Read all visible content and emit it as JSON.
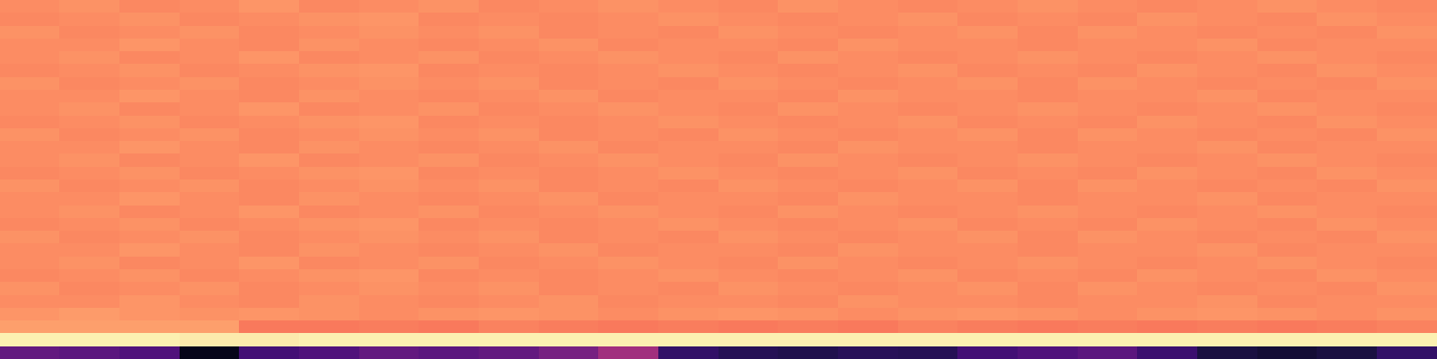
{
  "chart_data": {
    "type": "heatmap",
    "color": "magma",
    "tick_labels": false,
    "color_range": [
      0,
      1
    ],
    "cells": [
      [
        0.76,
        0.77,
        0.75,
        0.76,
        0.78,
        0.75,
        0.76,
        0.77,
        0.75,
        0.76,
        0.77,
        0.76,
        0.75,
        0.77,
        0.76,
        0.75,
        0.76,
        0.77,
        0.76,
        0.75,
        0.76,
        0.77,
        0.76,
        0.75
      ],
      [
        0.75,
        0.76,
        0.77,
        0.75,
        0.76,
        0.77,
        0.78,
        0.75,
        0.76,
        0.75,
        0.76,
        0.77,
        0.76,
        0.75,
        0.76,
        0.77,
        0.75,
        0.76,
        0.75,
        0.77,
        0.76,
        0.75,
        0.77,
        0.76
      ],
      [
        0.77,
        0.75,
        0.76,
        0.77,
        0.75,
        0.76,
        0.77,
        0.76,
        0.77,
        0.75,
        0.76,
        0.75,
        0.77,
        0.76,
        0.75,
        0.76,
        0.77,
        0.75,
        0.77,
        0.76,
        0.75,
        0.76,
        0.75,
        0.77
      ],
      [
        0.76,
        0.76,
        0.78,
        0.76,
        0.75,
        0.77,
        0.76,
        0.75,
        0.76,
        0.77,
        0.75,
        0.76,
        0.76,
        0.75,
        0.77,
        0.76,
        0.76,
        0.75,
        0.76,
        0.76,
        0.77,
        0.75,
        0.76,
        0.76
      ],
      [
        0.76,
        0.77,
        0.75,
        0.76,
        0.78,
        0.75,
        0.76,
        0.77,
        0.75,
        0.76,
        0.77,
        0.76,
        0.75,
        0.77,
        0.76,
        0.75,
        0.76,
        0.77,
        0.76,
        0.75,
        0.76,
        0.77,
        0.76,
        0.75
      ],
      [
        0.75,
        0.76,
        0.77,
        0.75,
        0.76,
        0.77,
        0.78,
        0.75,
        0.76,
        0.75,
        0.76,
        0.77,
        0.76,
        0.75,
        0.76,
        0.77,
        0.75,
        0.76,
        0.75,
        0.77,
        0.76,
        0.75,
        0.77,
        0.76
      ],
      [
        0.77,
        0.75,
        0.76,
        0.77,
        0.75,
        0.76,
        0.77,
        0.76,
        0.77,
        0.75,
        0.76,
        0.75,
        0.77,
        0.76,
        0.75,
        0.76,
        0.77,
        0.75,
        0.77,
        0.76,
        0.75,
        0.76,
        0.75,
        0.77
      ],
      [
        0.76,
        0.76,
        0.78,
        0.76,
        0.75,
        0.77,
        0.76,
        0.75,
        0.76,
        0.77,
        0.75,
        0.76,
        0.76,
        0.75,
        0.77,
        0.76,
        0.76,
        0.75,
        0.76,
        0.76,
        0.77,
        0.75,
        0.76,
        0.76
      ],
      [
        0.76,
        0.77,
        0.75,
        0.76,
        0.78,
        0.75,
        0.76,
        0.77,
        0.75,
        0.76,
        0.77,
        0.76,
        0.75,
        0.77,
        0.76,
        0.75,
        0.76,
        0.77,
        0.76,
        0.75,
        0.76,
        0.77,
        0.76,
        0.75
      ],
      [
        0.75,
        0.76,
        0.77,
        0.75,
        0.76,
        0.77,
        0.78,
        0.75,
        0.76,
        0.75,
        0.76,
        0.77,
        0.76,
        0.75,
        0.76,
        0.77,
        0.75,
        0.76,
        0.75,
        0.77,
        0.76,
        0.75,
        0.77,
        0.76
      ],
      [
        0.77,
        0.75,
        0.76,
        0.77,
        0.75,
        0.76,
        0.77,
        0.76,
        0.77,
        0.75,
        0.76,
        0.75,
        0.77,
        0.76,
        0.75,
        0.76,
        0.77,
        0.75,
        0.77,
        0.76,
        0.75,
        0.76,
        0.75,
        0.77
      ],
      [
        0.76,
        0.76,
        0.78,
        0.76,
        0.75,
        0.77,
        0.76,
        0.75,
        0.76,
        0.77,
        0.75,
        0.76,
        0.76,
        0.75,
        0.77,
        0.76,
        0.76,
        0.75,
        0.76,
        0.76,
        0.77,
        0.75,
        0.76,
        0.76
      ],
      [
        0.76,
        0.77,
        0.75,
        0.76,
        0.78,
        0.75,
        0.76,
        0.77,
        0.75,
        0.76,
        0.77,
        0.76,
        0.75,
        0.77,
        0.76,
        0.75,
        0.76,
        0.77,
        0.76,
        0.75,
        0.76,
        0.77,
        0.76,
        0.75
      ],
      [
        0.75,
        0.76,
        0.77,
        0.75,
        0.76,
        0.77,
        0.78,
        0.75,
        0.76,
        0.75,
        0.76,
        0.77,
        0.76,
        0.75,
        0.76,
        0.77,
        0.75,
        0.76,
        0.75,
        0.77,
        0.76,
        0.75,
        0.77,
        0.76
      ],
      [
        0.77,
        0.75,
        0.76,
        0.77,
        0.75,
        0.76,
        0.77,
        0.76,
        0.77,
        0.75,
        0.76,
        0.75,
        0.77,
        0.76,
        0.75,
        0.76,
        0.77,
        0.75,
        0.77,
        0.76,
        0.75,
        0.76,
        0.75,
        0.77
      ],
      [
        0.76,
        0.76,
        0.78,
        0.76,
        0.75,
        0.77,
        0.76,
        0.75,
        0.76,
        0.77,
        0.75,
        0.76,
        0.76,
        0.75,
        0.77,
        0.76,
        0.76,
        0.75,
        0.76,
        0.76,
        0.77,
        0.75,
        0.76,
        0.76
      ],
      [
        0.76,
        0.77,
        0.75,
        0.76,
        0.78,
        0.75,
        0.76,
        0.77,
        0.75,
        0.76,
        0.77,
        0.76,
        0.75,
        0.77,
        0.76,
        0.75,
        0.76,
        0.77,
        0.76,
        0.75,
        0.76,
        0.77,
        0.76,
        0.75
      ],
      [
        0.75,
        0.76,
        0.77,
        0.75,
        0.76,
        0.77,
        0.78,
        0.75,
        0.76,
        0.75,
        0.76,
        0.77,
        0.76,
        0.75,
        0.76,
        0.77,
        0.75,
        0.76,
        0.75,
        0.77,
        0.76,
        0.75,
        0.77,
        0.76
      ],
      [
        0.77,
        0.75,
        0.76,
        0.77,
        0.75,
        0.76,
        0.77,
        0.76,
        0.77,
        0.75,
        0.76,
        0.75,
        0.77,
        0.76,
        0.75,
        0.76,
        0.77,
        0.75,
        0.77,
        0.76,
        0.75,
        0.76,
        0.75,
        0.77
      ],
      [
        0.76,
        0.76,
        0.78,
        0.76,
        0.75,
        0.77,
        0.76,
        0.75,
        0.76,
        0.77,
        0.75,
        0.76,
        0.76,
        0.75,
        0.77,
        0.76,
        0.76,
        0.75,
        0.76,
        0.76,
        0.77,
        0.75,
        0.76,
        0.76
      ],
      [
        0.76,
        0.77,
        0.75,
        0.76,
        0.78,
        0.75,
        0.76,
        0.77,
        0.75,
        0.76,
        0.77,
        0.76,
        0.75,
        0.77,
        0.76,
        0.75,
        0.76,
        0.77,
        0.76,
        0.75,
        0.76,
        0.77,
        0.76,
        0.75
      ],
      [
        0.75,
        0.76,
        0.77,
        0.75,
        0.76,
        0.77,
        0.78,
        0.75,
        0.76,
        0.75,
        0.76,
        0.77,
        0.76,
        0.75,
        0.76,
        0.77,
        0.75,
        0.76,
        0.75,
        0.77,
        0.76,
        0.75,
        0.77,
        0.76
      ],
      [
        0.77,
        0.75,
        0.76,
        0.77,
        0.75,
        0.76,
        0.77,
        0.76,
        0.77,
        0.75,
        0.76,
        0.75,
        0.77,
        0.76,
        0.75,
        0.76,
        0.77,
        0.75,
        0.77,
        0.76,
        0.75,
        0.76,
        0.75,
        0.77
      ],
      [
        0.76,
        0.76,
        0.78,
        0.76,
        0.75,
        0.77,
        0.76,
        0.75,
        0.76,
        0.77,
        0.75,
        0.76,
        0.76,
        0.75,
        0.77,
        0.76,
        0.76,
        0.75,
        0.76,
        0.76,
        0.77,
        0.75,
        0.76,
        0.76
      ],
      [
        0.78,
        0.79,
        0.78,
        0.77,
        0.78,
        0.77,
        0.76,
        0.77,
        0.78,
        0.77,
        0.76,
        0.77,
        0.78,
        0.77,
        0.76,
        0.77,
        0.78,
        0.77,
        0.76,
        0.77,
        0.78,
        0.77,
        0.76,
        0.77
      ],
      [
        0.8,
        0.8,
        0.8,
        0.8,
        0.72,
        0.72,
        0.73,
        0.72,
        0.74,
        0.73,
        0.72,
        0.73,
        0.72,
        0.73,
        0.72,
        0.74,
        0.73,
        0.72,
        0.73,
        0.72,
        0.73,
        0.72,
        0.73,
        0.74
      ],
      [
        0.97,
        0.97,
        0.97,
        0.96,
        0.96,
        0.97,
        0.97,
        0.97,
        0.97,
        0.97,
        0.97,
        0.97,
        0.97,
        0.97,
        0.97,
        0.97,
        0.97,
        0.97,
        0.97,
        0.97,
        0.97,
        0.97,
        0.97,
        0.97
      ],
      [
        0.3,
        0.28,
        0.25,
        0.05,
        0.22,
        0.25,
        0.3,
        0.28,
        0.3,
        0.35,
        0.45,
        0.18,
        0.15,
        0.14,
        0.16,
        0.15,
        0.22,
        0.25,
        0.28,
        0.2,
        0.12,
        0.1,
        0.12,
        0.18
      ]
    ]
  }
}
